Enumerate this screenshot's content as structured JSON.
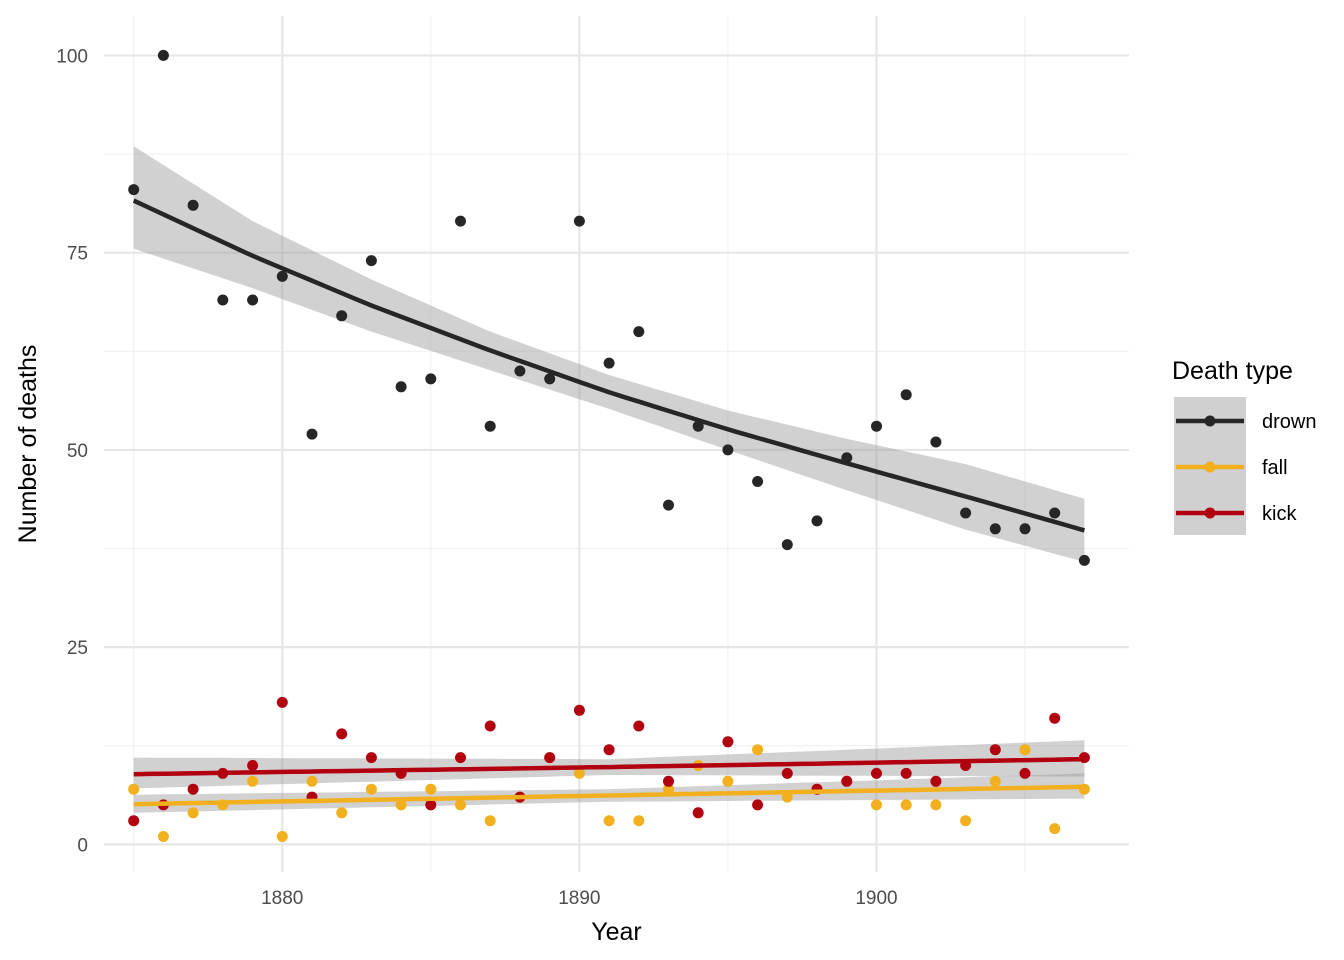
{
  "chart_data": {
    "type": "scatter",
    "title": "",
    "xlabel": "Year",
    "ylabel": "Number of deaths",
    "xlim": [
      1874,
      1908.5
    ],
    "ylim": [
      -3.5,
      105
    ],
    "x_ticks": [
      1880,
      1890,
      1900
    ],
    "x_tick_labels": [
      "1880",
      "1890",
      "1900"
    ],
    "y_ticks": [
      0,
      25,
      50,
      75,
      100
    ],
    "y_tick_labels": [
      "0",
      "25",
      "50",
      "75",
      "100"
    ],
    "grid": true,
    "legend": {
      "title": "Death type",
      "placement": "right"
    },
    "series": [
      {
        "name": "drown",
        "color": "#262626",
        "points": [
          [
            1875,
            83
          ],
          [
            1876,
            100
          ],
          [
            1877,
            81
          ],
          [
            1878,
            69
          ],
          [
            1879,
            69
          ],
          [
            1880,
            72
          ],
          [
            1881,
            52
          ],
          [
            1882,
            67
          ],
          [
            1883,
            74
          ],
          [
            1884,
            58
          ],
          [
            1885,
            59
          ],
          [
            1886,
            79
          ],
          [
            1887,
            53
          ],
          [
            1888,
            60
          ],
          [
            1889,
            59
          ],
          [
            1890,
            79
          ],
          [
            1891,
            61
          ],
          [
            1892,
            65
          ],
          [
            1893,
            43
          ],
          [
            1894,
            53
          ],
          [
            1895,
            50
          ],
          [
            1896,
            46
          ],
          [
            1897,
            38
          ],
          [
            1898,
            41
          ],
          [
            1899,
            49
          ],
          [
            1900,
            53
          ],
          [
            1901,
            57
          ],
          [
            1902,
            51
          ],
          [
            1903,
            42
          ],
          [
            1904,
            40
          ],
          [
            1905,
            40
          ],
          [
            1906,
            42
          ],
          [
            1907,
            36
          ]
        ],
        "trend": [
          [
            1875,
            81.6
          ],
          [
            1879,
            74.6
          ],
          [
            1883,
            68.3
          ],
          [
            1887,
            62.6
          ],
          [
            1891,
            57.3
          ],
          [
            1895,
            52.6
          ],
          [
            1899,
            48.3
          ],
          [
            1903,
            44.1
          ],
          [
            1907,
            39.8
          ]
        ],
        "band": [
          [
            1875,
            75.5,
            88.5
          ],
          [
            1879,
            70.5,
            79.0
          ],
          [
            1883,
            65.0,
            71.6
          ],
          [
            1887,
            60.1,
            65.0
          ],
          [
            1891,
            55.2,
            59.5
          ],
          [
            1895,
            50.0,
            55.0
          ],
          [
            1899,
            44.9,
            51.4
          ],
          [
            1903,
            39.9,
            48.2
          ],
          [
            1907,
            35.8,
            43.8
          ]
        ]
      },
      {
        "name": "fall",
        "color": "#f2b01e",
        "points": [
          [
            1875,
            7
          ],
          [
            1876,
            1
          ],
          [
            1877,
            4
          ],
          [
            1878,
            5
          ],
          [
            1879,
            8
          ],
          [
            1880,
            1
          ],
          [
            1881,
            8
          ],
          [
            1882,
            4
          ],
          [
            1883,
            7
          ],
          [
            1884,
            5
          ],
          [
            1885,
            7
          ],
          [
            1886,
            5
          ],
          [
            1887,
            3
          ],
          [
            1888,
            6
          ],
          [
            1889,
            11
          ],
          [
            1890,
            9
          ],
          [
            1891,
            3
          ],
          [
            1892,
            3
          ],
          [
            1893,
            7
          ],
          [
            1894,
            10
          ],
          [
            1895,
            8
          ],
          [
            1896,
            12
          ],
          [
            1897,
            6
          ],
          [
            1898,
            7
          ],
          [
            1899,
            8
          ],
          [
            1900,
            5
          ],
          [
            1901,
            5
          ],
          [
            1902,
            5
          ],
          [
            1903,
            3
          ],
          [
            1904,
            8
          ],
          [
            1905,
            12
          ],
          [
            1906,
            2
          ],
          [
            1907,
            7
          ]
        ],
        "trend": [
          [
            1875,
            5.1
          ],
          [
            1891,
            6.2
          ],
          [
            1907,
            7.3
          ]
        ],
        "band": [
          [
            1875,
            4.0,
            6.3
          ],
          [
            1891,
            5.4,
            7.0
          ],
          [
            1907,
            5.8,
            9.0
          ]
        ]
      },
      {
        "name": "kick",
        "color": "#b1000f",
        "points": [
          [
            1875,
            3
          ],
          [
            1876,
            5
          ],
          [
            1877,
            7
          ],
          [
            1878,
            9
          ],
          [
            1879,
            10
          ],
          [
            1880,
            18
          ],
          [
            1881,
            6
          ],
          [
            1882,
            14
          ],
          [
            1883,
            11
          ],
          [
            1884,
            9
          ],
          [
            1885,
            5
          ],
          [
            1886,
            11
          ],
          [
            1887,
            15
          ],
          [
            1888,
            6
          ],
          [
            1889,
            11
          ],
          [
            1890,
            17
          ],
          [
            1891,
            12
          ],
          [
            1892,
            15
          ],
          [
            1893,
            8
          ],
          [
            1894,
            4
          ],
          [
            1895,
            13
          ],
          [
            1896,
            5
          ],
          [
            1897,
            9
          ],
          [
            1898,
            7
          ],
          [
            1899,
            8
          ],
          [
            1900,
            9
          ],
          [
            1901,
            9
          ],
          [
            1902,
            8
          ],
          [
            1903,
            10
          ],
          [
            1904,
            12
          ],
          [
            1905,
            9
          ],
          [
            1906,
            16
          ],
          [
            1907,
            11
          ]
        ],
        "trend": [
          [
            1875,
            8.9
          ],
          [
            1891,
            9.8
          ],
          [
            1907,
            10.8
          ]
        ],
        "band": [
          [
            1875,
            7.1,
            11.0
          ],
          [
            1891,
            8.8,
            10.8
          ],
          [
            1907,
            8.6,
            13.2
          ]
        ]
      }
    ]
  }
}
